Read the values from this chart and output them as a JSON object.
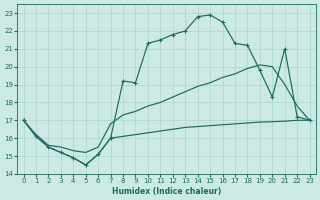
{
  "xlabel": "Humidex (Indice chaleur)",
  "x_values": [
    0,
    1,
    2,
    3,
    4,
    5,
    6,
    7,
    8,
    9,
    10,
    11,
    12,
    13,
    14,
    15,
    16,
    17,
    18,
    19,
    20,
    21,
    22,
    23
  ],
  "main_line": [
    17.0,
    16.1,
    15.5,
    15.2,
    14.9,
    14.5,
    15.1,
    16.0,
    19.2,
    19.1,
    21.3,
    21.5,
    21.8,
    22.0,
    22.8,
    22.9,
    22.5,
    21.3,
    21.2,
    19.8,
    18.3,
    21.0,
    17.2,
    17.0
  ],
  "upper_line": [
    17.0,
    16.2,
    15.6,
    15.5,
    15.3,
    15.2,
    15.5,
    16.8,
    17.3,
    17.5,
    17.8,
    18.0,
    18.3,
    18.6,
    18.9,
    19.1,
    19.4,
    19.6,
    19.9,
    20.1,
    20.0,
    19.0,
    17.8,
    17.0
  ],
  "lower_line": [
    17.0,
    16.1,
    15.5,
    15.2,
    14.9,
    14.5,
    15.1,
    16.0,
    16.1,
    16.2,
    16.3,
    16.4,
    16.5,
    16.6,
    16.65,
    16.7,
    16.75,
    16.8,
    16.85,
    16.9,
    16.92,
    16.95,
    17.0,
    17.0
  ],
  "bg_color": "#cce9e5",
  "line_color": "#1a6b5a",
  "grid_color": "#aad4cf",
  "ylim": [
    14,
    23.5
  ],
  "yticks": [
    14,
    15,
    16,
    17,
    18,
    19,
    20,
    21,
    22,
    23
  ],
  "xticks": [
    0,
    1,
    2,
    3,
    4,
    5,
    6,
    7,
    8,
    9,
    10,
    11,
    12,
    13,
    14,
    15,
    16,
    17,
    18,
    19,
    20,
    21,
    22,
    23
  ]
}
